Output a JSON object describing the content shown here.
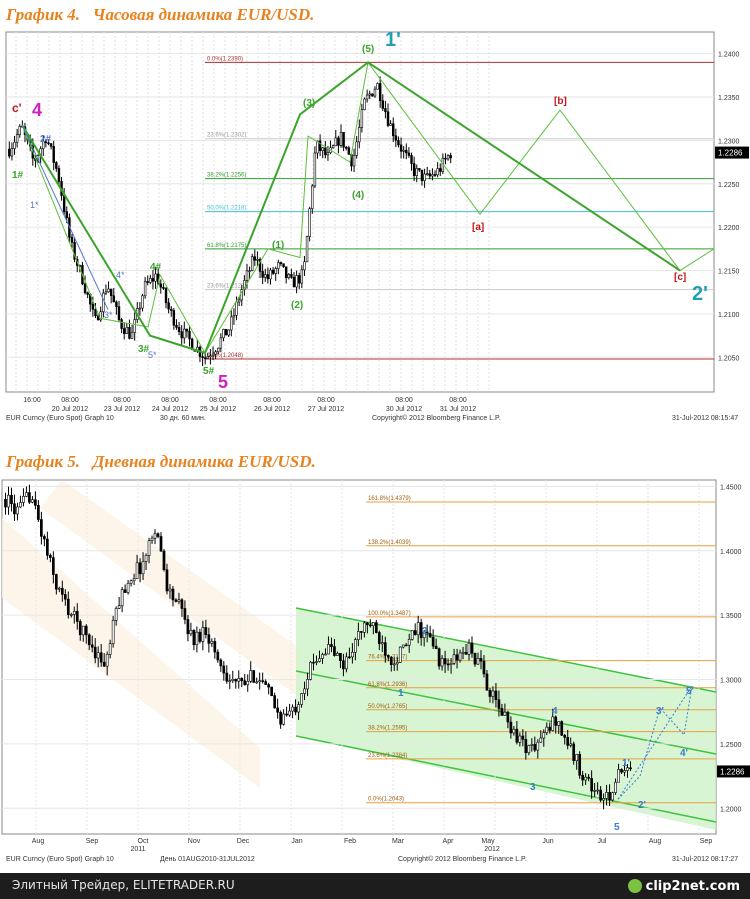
{
  "chart4": {
    "title": "График 4.   Часовая динамика EUR/USD.",
    "footer_left": "EUR Curncy (Euro Spot) Graph 10",
    "footer_mid": "30 дн. 60 мин.",
    "footer_copyright": "Copyright© 2012 Bloomberg Finance L.P.",
    "footer_right": "31-Jul-2012 08:15:47",
    "price_badge": "1.2286",
    "fib_labels": [
      "0.0%(1.2390)",
      "38.2%(1.2256)",
      "50.0%(1.2218)",
      "61.8%(1.2175)",
      "23.6%(1.2128)",
      "0.0%(1.2048)",
      "23.6%(1.2302)"
    ],
    "wave_labels": {
      "c_prime": "c'",
      "four_big": "4",
      "five_big": "5",
      "one_prime_big": "1'",
      "two_prime_big": "2'",
      "w1": "1#",
      "w2": "2#",
      "w1s": "1*",
      "w3s": "3*",
      "w4s": "4*",
      "w5s": "5*",
      "w3h": "3#",
      "w4h": "4#",
      "w5h": "5#",
      "g1": "(1)",
      "g2": "(2)",
      "g3": "(3)",
      "g4": "(4)",
      "g5": "(5)",
      "ra": "[a]",
      "rb": "[b]",
      "rc": "[c]"
    }
  },
  "chart5": {
    "title": "График 5.   Дневная динамика EUR/USD.",
    "footer_left": "EUR Curncy (Euro Spot) Graph 10",
    "footer_mid": "День 01AUG2010-31JUL2012",
    "footer_copyright": "Copyright© 2012 Bloomberg Finance L.P.",
    "footer_right": "31-Jul-2012 08:17:27",
    "price_badge": "1.2286",
    "year_left": "2011",
    "year_right": "2012",
    "fib_labels": [
      "161.8%(1.4379)",
      "138.2%(1.4039)",
      "100.0%(1.3487)",
      "76.4%(1.3147)",
      "61.8%(1.2936)",
      "50.0%(1.2765)",
      "38.2%(1.2595)",
      "23.6%(1.2384)",
      "0.0%(1.2043)"
    ],
    "wave_labels": {
      "w1": "1",
      "w2": "2",
      "w3": "3",
      "w4": "4",
      "w5": "5",
      "w1p": "1'",
      "w2p": "2'",
      "w3p": "3'",
      "w4p": "4'",
      "w5p": "5'"
    }
  },
  "chart_data": [
    {
      "type": "candlestick",
      "title": "График 4.   Часовая динамика EUR/USD.",
      "x_ticks": [
        "16:00",
        "08:00\n20 Jul 2012",
        "08:00\n23 Jul 2012",
        "08:00\n24 Jul 2012",
        "08:00\n25 Jul 2012",
        "08:00\n26 Jul 2012",
        "08:00\n27 Jul 2012",
        "08:00\n30 Jul 2012",
        "08:00\n31 Jul 2012"
      ],
      "y_ticks": [
        1.205,
        1.21,
        1.215,
        1.22,
        1.225,
        1.23,
        1.235,
        1.24
      ],
      "ylim": [
        1.201,
        1.2425
      ],
      "close_path": [
        1.229,
        1.2315,
        1.2275,
        1.2305,
        1.226,
        1.218,
        1.214,
        1.209,
        1.2135,
        1.209,
        1.2075,
        1.213,
        1.2145,
        1.2105,
        1.208,
        1.2065,
        1.205,
        1.2065,
        1.2085,
        1.213,
        1.2165,
        1.214,
        1.2155,
        1.2135,
        1.2145,
        1.2295,
        1.228,
        1.2305,
        1.2275,
        1.2345,
        1.2365,
        1.232,
        1.229,
        1.2265,
        1.2255,
        1.2265,
        1.2286
      ],
      "fib_levels": [
        {
          "label": "0.0%(1.2390)",
          "value": 1.239,
          "color": "#b03030"
        },
        {
          "label": "23.6%(1.2302)",
          "value": 1.2302,
          "color": "#cccccc"
        },
        {
          "label": "38.2%(1.2256)",
          "value": 1.2256,
          "color": "#2e9e2e"
        },
        {
          "label": "50.0%(1.2218)",
          "value": 1.2218,
          "color": "#40c0d0"
        },
        {
          "label": "61.8%(1.2175)",
          "value": 1.2175,
          "color": "#2e9e2e"
        },
        {
          "label": "23.6%(1.2128)",
          "value": 1.2128,
          "color": "#cccccc"
        },
        {
          "label": "0.0%(1.2048)",
          "value": 1.2048,
          "color": "#b03030"
        }
      ],
      "last_price": 1.2286
    },
    {
      "type": "candlestick",
      "title": "График 5.   Дневная динамика EUR/USD.",
      "x_ticks": [
        "Aug",
        "Sep",
        "Oct",
        "Nov",
        "Dec",
        "Jan",
        "Feb",
        "Mar",
        "Apr",
        "May",
        "Jun",
        "Jul",
        "Aug",
        "Sep"
      ],
      "y_ticks": [
        1.2,
        1.25,
        1.3,
        1.35,
        1.4,
        1.45
      ],
      "ylim": [
        1.18,
        1.455
      ],
      "close_path": [
        1.44,
        1.43,
        1.445,
        1.41,
        1.375,
        1.355,
        1.34,
        1.325,
        1.31,
        1.36,
        1.38,
        1.39,
        1.42,
        1.37,
        1.355,
        1.33,
        1.34,
        1.315,
        1.3,
        1.295,
        1.305,
        1.29,
        1.27,
        1.275,
        1.3,
        1.32,
        1.325,
        1.31,
        1.33,
        1.345,
        1.33,
        1.315,
        1.325,
        1.34,
        1.33,
        1.31,
        1.315,
        1.325,
        1.31,
        1.285,
        1.27,
        1.255,
        1.245,
        1.255,
        1.27,
        1.25,
        1.23,
        1.215,
        1.205,
        1.225,
        1.2286
      ],
      "fib_levels": [
        {
          "label": "161.8%(1.4379)",
          "value": 1.4379
        },
        {
          "label": "138.2%(1.4039)",
          "value": 1.4039
        },
        {
          "label": "100.0%(1.3487)",
          "value": 1.3487
        },
        {
          "label": "76.4%(1.3147)",
          "value": 1.3147
        },
        {
          "label": "61.8%(1.2936)",
          "value": 1.2936
        },
        {
          "label": "50.0%(1.2765)",
          "value": 1.2765
        },
        {
          "label": "38.2%(1.2595)",
          "value": 1.2595
        },
        {
          "label": "23.6%(1.2384)",
          "value": 1.2384
        },
        {
          "label": "0.0%(1.2043)",
          "value": 1.2043
        }
      ],
      "last_price": 1.2286
    }
  ],
  "footer": {
    "text": "Элитный Трейдер, ELITETRADER.RU",
    "logo": "clip2net.com"
  }
}
